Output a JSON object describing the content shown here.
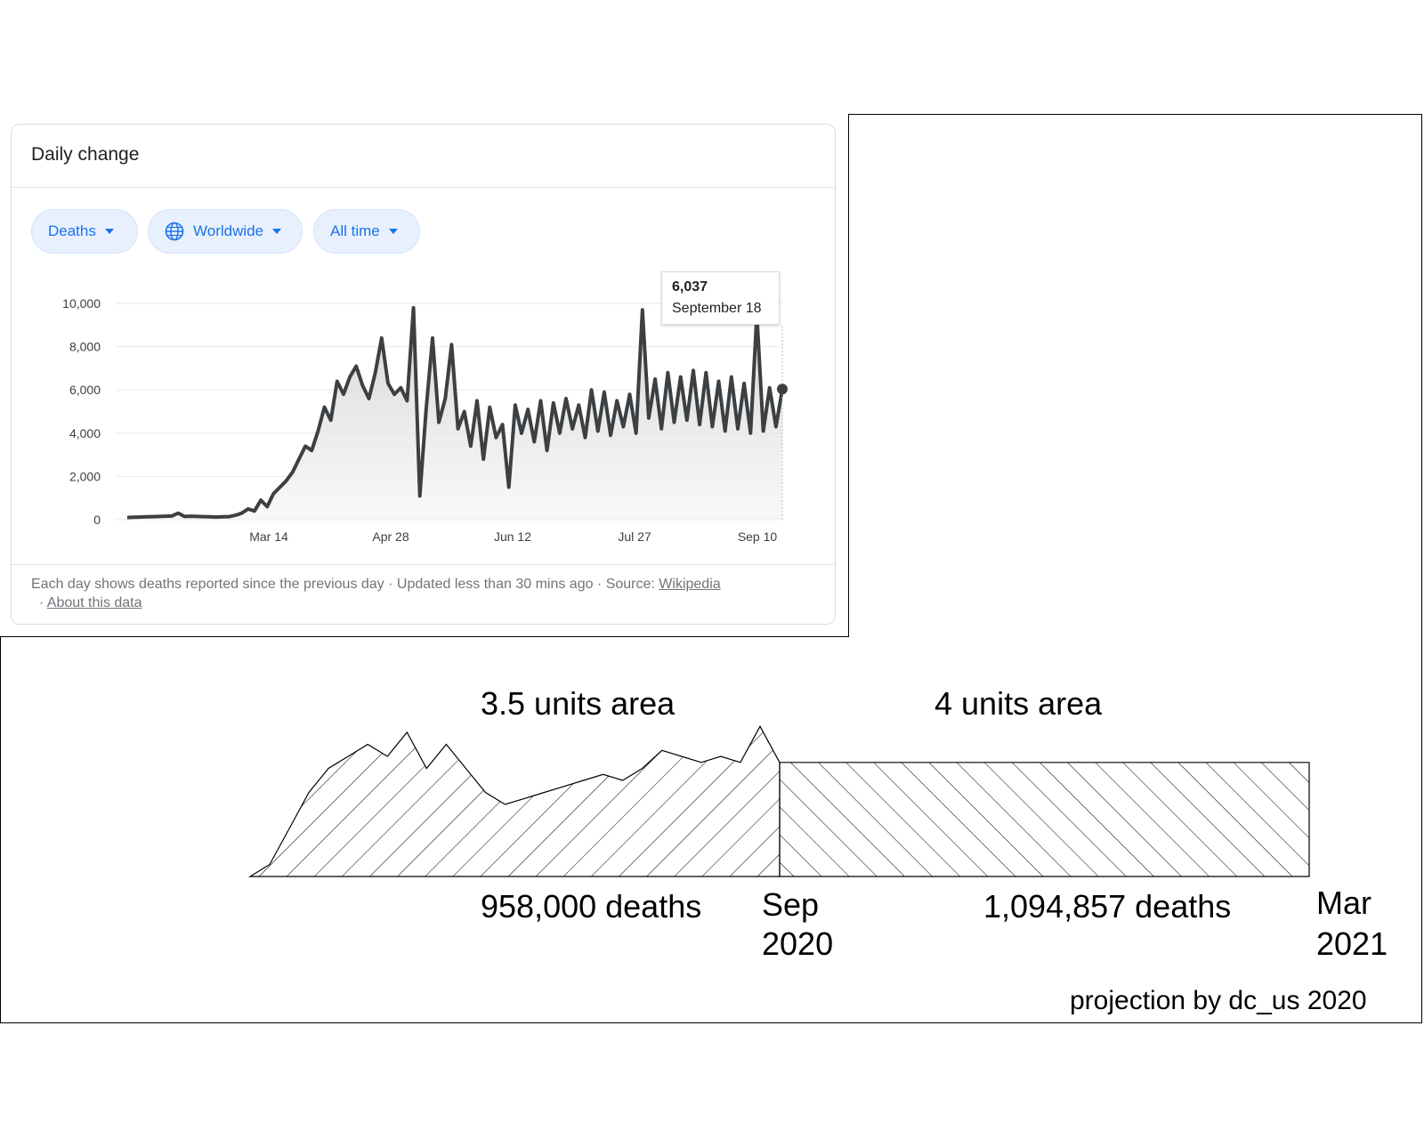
{
  "card": {
    "title": "Daily change",
    "chips": [
      {
        "label": "Deaths",
        "icon": "caret-down-icon"
      },
      {
        "label": "Worldwide",
        "icon": "globe-icon"
      },
      {
        "label": "All time",
        "icon": "caret-down-icon"
      }
    ],
    "tooltip": {
      "value": "6,037",
      "date": "September 18"
    },
    "footer": {
      "text": "Each day shows deaths reported since the previous day · Updated less than 30 mins ago  ·  Source: ",
      "source_link": "Wikipedia",
      "about_prefix": "· ",
      "about_link": "About this data"
    }
  },
  "chart_data": [
    {
      "type": "line",
      "title": "",
      "xlabel": "",
      "ylabel": "",
      "x_ticks": [
        "Mar 14",
        "Apr 28",
        "Jun 12",
        "Jul 27",
        "Sep 10"
      ],
      "y_ticks": [
        "0",
        "2,000",
        "4,000",
        "6,000",
        "8,000",
        "10,000"
      ],
      "ylim": [
        0,
        10000
      ],
      "grid": true,
      "series": [
        {
          "values": [
            100,
            110,
            120,
            130,
            140,
            150,
            160,
            170,
            300,
            150,
            160,
            150,
            140,
            130,
            120,
            130,
            140,
            200,
            300,
            500,
            400,
            900,
            600,
            1200,
            1500,
            1800,
            2200,
            2800,
            3400,
            3200,
            4100,
            5200,
            4600,
            6400,
            5800,
            6600,
            7100,
            6200,
            5600,
            6800,
            8400,
            6300,
            5800,
            6100,
            5500,
            9800,
            1100,
            5100,
            8400,
            4500,
            5600,
            8100,
            4200,
            5000,
            3400,
            5500,
            2800,
            5200,
            3800,
            4400,
            1500,
            5300,
            4000,
            5100,
            3600,
            5500,
            3200,
            5400,
            4000,
            5600,
            4200,
            5300,
            3800,
            6000,
            4100,
            5900,
            3900,
            5500,
            4300,
            5800,
            4000,
            9700,
            4700,
            6500,
            4200,
            6800,
            4500,
            6600,
            4600,
            6900,
            4400,
            6800,
            4300,
            6400,
            4100,
            6600,
            4200,
            6300,
            4000,
            9500,
            4100,
            6100,
            4300,
            6037
          ]
        }
      ]
    },
    {
      "type": "area",
      "title": "",
      "annotations": [
        "3.5 units area",
        "4 units area",
        "958,000 deaths",
        "1,094,857 deaths"
      ],
      "x_ticks": [
        "Sep\n2020",
        "Mar\n2021"
      ],
      "series": [
        {
          "name": "",
          "values": [
            0,
            1,
            4,
            7,
            9,
            10,
            11,
            10,
            12,
            9,
            11,
            9,
            7,
            6,
            6.5,
            7,
            7.5,
            8,
            8.5,
            8,
            9,
            10.5,
            10,
            9.5,
            10,
            9.5,
            12.5,
            9.5
          ]
        },
        {
          "name": "",
          "values": [
            9.5,
            9.5
          ]
        }
      ]
    }
  ],
  "projection": {
    "left_area_label": "3.5 units area",
    "right_area_label": "4 units area",
    "left_deaths": "958,000 deaths",
    "right_deaths": "1,094,857 deaths",
    "date_sep_month": "Sep",
    "date_sep_year": "2020",
    "date_mar_month": "Mar",
    "date_mar_year": "2021",
    "credit": "projection by dc_us 2020"
  },
  "colors": {
    "accent": "#1a73e8",
    "chip_bg": "#e8f0fe",
    "line": "#3c4043"
  }
}
